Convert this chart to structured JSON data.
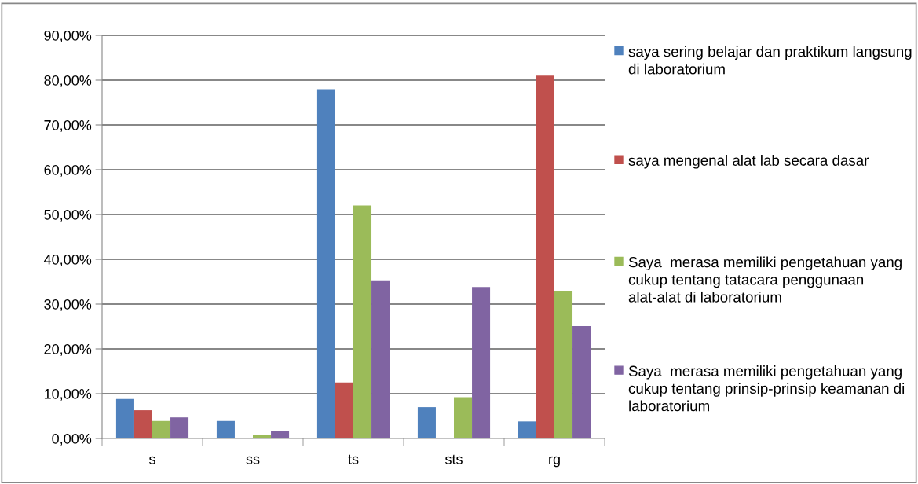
{
  "chart_data": {
    "type": "bar",
    "categories": [
      "s",
      "ss",
      "ts",
      "sts",
      "rg"
    ],
    "series": [
      {
        "name": "saya sering belajar dan praktikum langsung di laboratorium",
        "color": "#4f81bd",
        "values": [
          8.8,
          3.9,
          78,
          7.0,
          3.8
        ]
      },
      {
        "name": "saya mengenal alat lab secara dasar",
        "color": "#c0504d",
        "values": [
          6.3,
          0,
          12.5,
          0,
          81
        ]
      },
      {
        "name": "Saya  merasa memiliki pengetahuan yang cukup tentang tatacara penggunaan alat-alat di laboratorium",
        "color": "#9bbb59",
        "values": [
          3.9,
          0.8,
          52,
          9.2,
          33
        ]
      },
      {
        "name": "Saya  merasa memiliki pengetahuan yang cukup tentang prinsip-prinsip keamanan di laboratorium",
        "color": "#8064a2",
        "values": [
          4.7,
          1.6,
          35.3,
          33.8,
          25.1
        ]
      }
    ],
    "ylim": [
      0,
      90
    ],
    "yticks": [
      {
        "value": 0,
        "label": "0,00%"
      },
      {
        "value": 10,
        "label": "10,00%"
      },
      {
        "value": 20,
        "label": "20,00%"
      },
      {
        "value": 30,
        "label": "30,00%"
      },
      {
        "value": 40,
        "label": "40,00%"
      },
      {
        "value": 50,
        "label": "50,00%"
      },
      {
        "value": 60,
        "label": "60,00%"
      },
      {
        "value": 70,
        "label": "70,00%"
      },
      {
        "value": 80,
        "label": "80,00%"
      },
      {
        "value": 90,
        "label": "90,00%"
      }
    ],
    "grid": "y",
    "legend": "right"
  }
}
